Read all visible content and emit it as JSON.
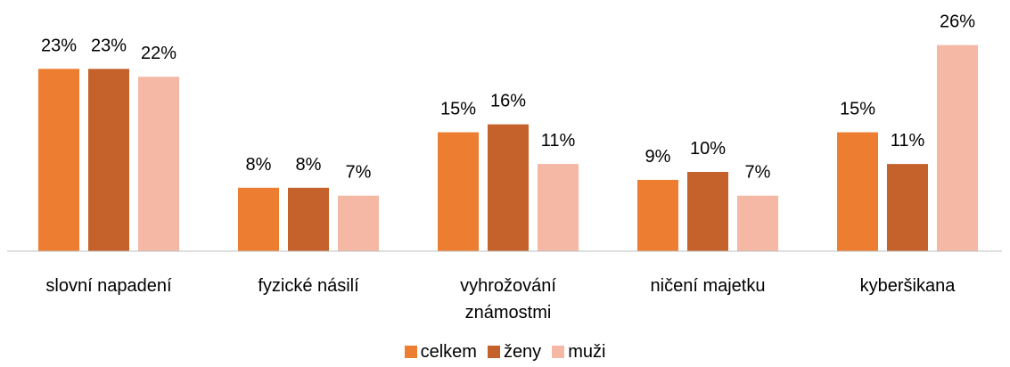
{
  "chart_data": {
    "type": "bar",
    "categories": [
      "slovní napadení",
      "fyzické násilí",
      "vyhrožování známostmi",
      "ničení majetku",
      "kyberšikana"
    ],
    "series": [
      {
        "name": "celkem",
        "color": "#ed7d31",
        "values": [
          23,
          8,
          15,
          9,
          15
        ],
        "value_labels": [
          "23%",
          "8%",
          "15%",
          "9%",
          "15%"
        ]
      },
      {
        "name": "ženy",
        "color": "#c5622b",
        "values": [
          23,
          8,
          16,
          10,
          11
        ],
        "value_labels": [
          "23%",
          "8%",
          "16%",
          "10%",
          "11%"
        ]
      },
      {
        "name": "muži",
        "color": "#f4b8a5",
        "values": [
          22,
          7,
          11,
          7,
          26
        ],
        "value_labels": [
          "22%",
          "7%",
          "11%",
          "7%",
          "26%"
        ]
      }
    ],
    "ylim": [
      0,
      30
    ],
    "legend": "bottom"
  }
}
